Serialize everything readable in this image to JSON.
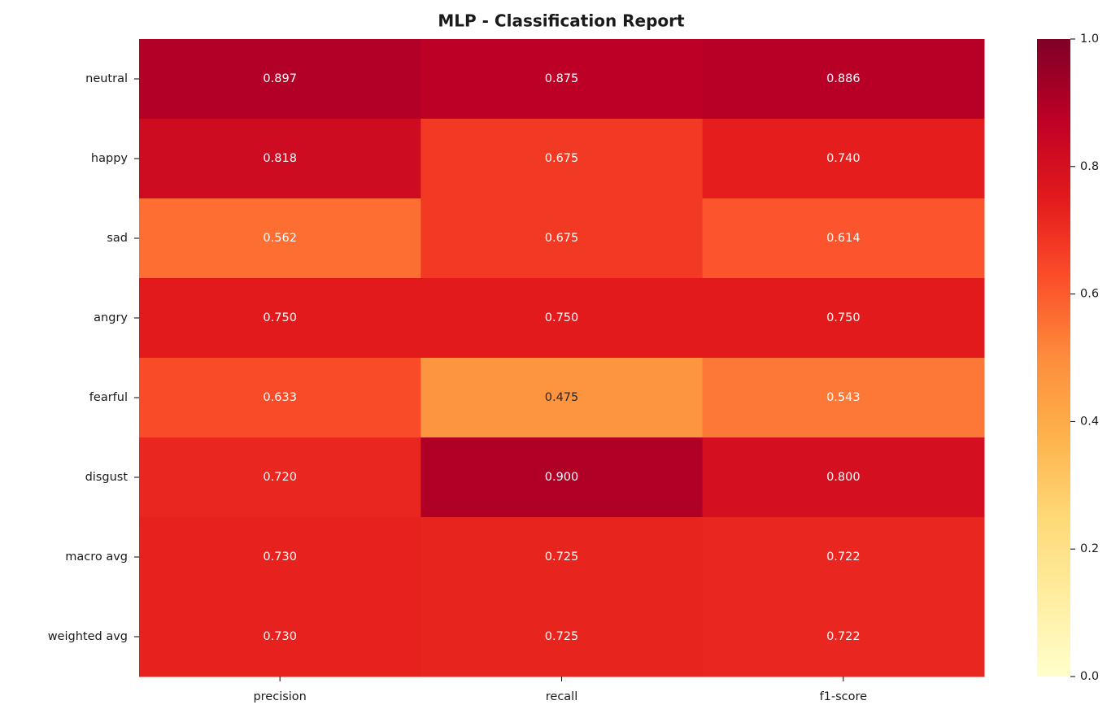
{
  "chart_data": {
    "type": "heatmap",
    "title": "MLP - Classification Report",
    "x": [
      "precision",
      "recall",
      "f1-score"
    ],
    "y": [
      "neutral",
      "happy",
      "sad",
      "angry",
      "fearful",
      "disgust",
      "macro avg",
      "weighted avg"
    ],
    "values": [
      [
        0.897,
        0.875,
        0.886
      ],
      [
        0.818,
        0.675,
        0.74
      ],
      [
        0.562,
        0.675,
        0.614
      ],
      [
        0.75,
        0.75,
        0.75
      ],
      [
        0.633,
        0.475,
        0.543
      ],
      [
        0.72,
        0.9,
        0.8
      ],
      [
        0.73,
        0.725,
        0.722
      ],
      [
        0.73,
        0.725,
        0.722
      ]
    ],
    "value_labels": [
      [
        "0.897",
        "0.875",
        "0.886"
      ],
      [
        "0.818",
        "0.675",
        "0.740"
      ],
      [
        "0.562",
        "0.675",
        "0.614"
      ],
      [
        "0.750",
        "0.750",
        "0.750"
      ],
      [
        "0.633",
        "0.475",
        "0.543"
      ],
      [
        "0.720",
        "0.900",
        "0.800"
      ],
      [
        "0.730",
        "0.725",
        "0.722"
      ],
      [
        "0.730",
        "0.725",
        "0.722"
      ]
    ],
    "clim": [
      0,
      1
    ],
    "cticks": [
      {
        "value": 0,
        "label": "0.0"
      },
      {
        "value": 0.2,
        "label": "0.2"
      },
      {
        "value": 0.4,
        "label": "0.4"
      },
      {
        "value": 0.6,
        "label": "0.6"
      },
      {
        "value": 0.8,
        "label": "0.8"
      },
      {
        "value": 1,
        "label": "1.0"
      }
    ],
    "colormap": [
      "#ffffcc",
      "#ffeda0",
      "#fed976",
      "#feb24c",
      "#fd8d3c",
      "#fc4e2a",
      "#e31a1c",
      "#bd0026",
      "#800026"
    ]
  }
}
